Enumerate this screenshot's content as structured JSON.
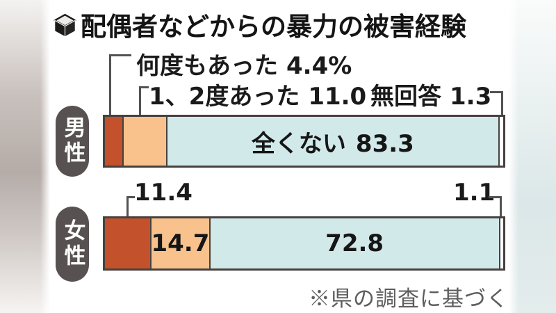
{
  "title": {
    "icon": "cube-icon",
    "text": "配偶者などからの暴力の被害経験"
  },
  "chart_data": {
    "type": "bar",
    "orientation": "horizontal",
    "stacked": true,
    "unit": "%",
    "title": "配偶者などからの暴力の被害経験",
    "categories": [
      "男性",
      "女性"
    ],
    "series": [
      {
        "name": "何度もあった",
        "color": "#c3512b",
        "values": [
          4.4,
          11.4
        ]
      },
      {
        "name": "1、2度あった",
        "color": "#f9c28d",
        "values": [
          11.0,
          14.7
        ]
      },
      {
        "name": "全くない",
        "color": "#d2e9e9",
        "values": [
          83.3,
          72.8
        ]
      },
      {
        "name": "無回答",
        "color": "#fdfdfd",
        "values": [
          1.3,
          1.1
        ]
      }
    ],
    "xlim": [
      0,
      100
    ],
    "legend": "inline-callout-labels",
    "source_note": "※県の調査に基づく"
  },
  "rows": {
    "male": {
      "label": "男性"
    },
    "female": {
      "label": "女性"
    }
  },
  "annotations": {
    "many_label": "何度もあった",
    "many_value": "4.4%",
    "once_label": "1、2度あった",
    "once_value": "11.0",
    "noanswer_label": "無回答",
    "noanswer_value_male": "1.3",
    "none_label_male": "全くない",
    "none_value_male": "83.3",
    "many_value_female": "11.4",
    "once_value_female": "14.7",
    "none_value_female": "72.8",
    "noanswer_value_female": "1.1"
  },
  "footer": {
    "note": "※県の調査に基づく"
  },
  "colors": {
    "segment_many": "#c3512b",
    "segment_once": "#f9c28d",
    "segment_none": "#d2e9e9",
    "segment_noanswer": "#fdfdfd",
    "bar_border": "#46413f",
    "pill_background": "#575251",
    "pill_text": "#ffffff",
    "bracket_line": "#525252",
    "title_text": "#141414",
    "footer_text": "#5d5d5d"
  }
}
